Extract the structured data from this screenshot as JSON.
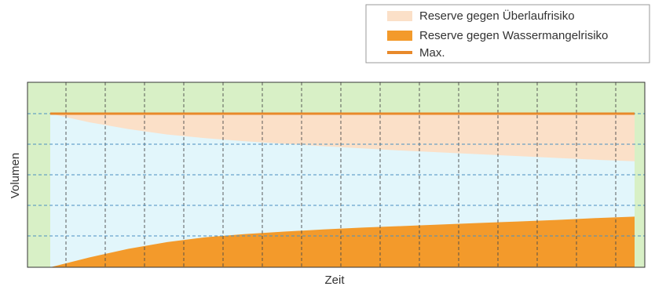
{
  "chart_data": {
    "type": "area",
    "title": "",
    "xlabel": "Zeit",
    "ylabel": "Volumen",
    "xlim": [
      0,
      15
    ],
    "ylim": [
      0,
      5
    ],
    "grid": true,
    "legend_position": "top-right",
    "x": [
      0,
      1,
      2,
      3,
      4,
      5,
      6,
      7,
      8,
      9,
      10,
      11,
      12,
      13,
      14,
      15
    ],
    "series": [
      {
        "name": "Reserve gegen Überlaufrisiko",
        "kind": "band",
        "upper": [
          5.0,
          5.0,
          5.0,
          5.0,
          5.0,
          5.0,
          5.0,
          5.0,
          5.0,
          5.0,
          5.0,
          5.0,
          5.0,
          5.0,
          5.0,
          5.0
        ],
        "lower": [
          5.0,
          4.72,
          4.5,
          4.32,
          4.2,
          4.1,
          4.02,
          3.94,
          3.87,
          3.8,
          3.74,
          3.68,
          3.62,
          3.56,
          3.5,
          3.45
        ],
        "color": "#fbe0c8"
      },
      {
        "name": "Reserve gegen Wassermangelrisiko",
        "kind": "area",
        "values": [
          0.0,
          0.32,
          0.6,
          0.82,
          0.98,
          1.08,
          1.16,
          1.23,
          1.29,
          1.34,
          1.39,
          1.44,
          1.49,
          1.54,
          1.6,
          1.65
        ],
        "color": "#f39a2b"
      },
      {
        "name": "Max.",
        "kind": "line",
        "values": [
          5.0,
          5.0,
          5.0,
          5.0,
          5.0,
          5.0,
          5.0,
          5.0,
          5.0,
          5.0,
          5.0,
          5.0,
          5.0,
          5.0,
          5.0,
          5.0
        ],
        "color": "#e8892a"
      }
    ],
    "colors": {
      "outer_margin": "#d8f0c6",
      "inner_background": "#e2f6fb",
      "vertical_grid": "#4a4a4a",
      "horizontal_grid": "#4a8fc0",
      "frame": "#333333"
    }
  }
}
